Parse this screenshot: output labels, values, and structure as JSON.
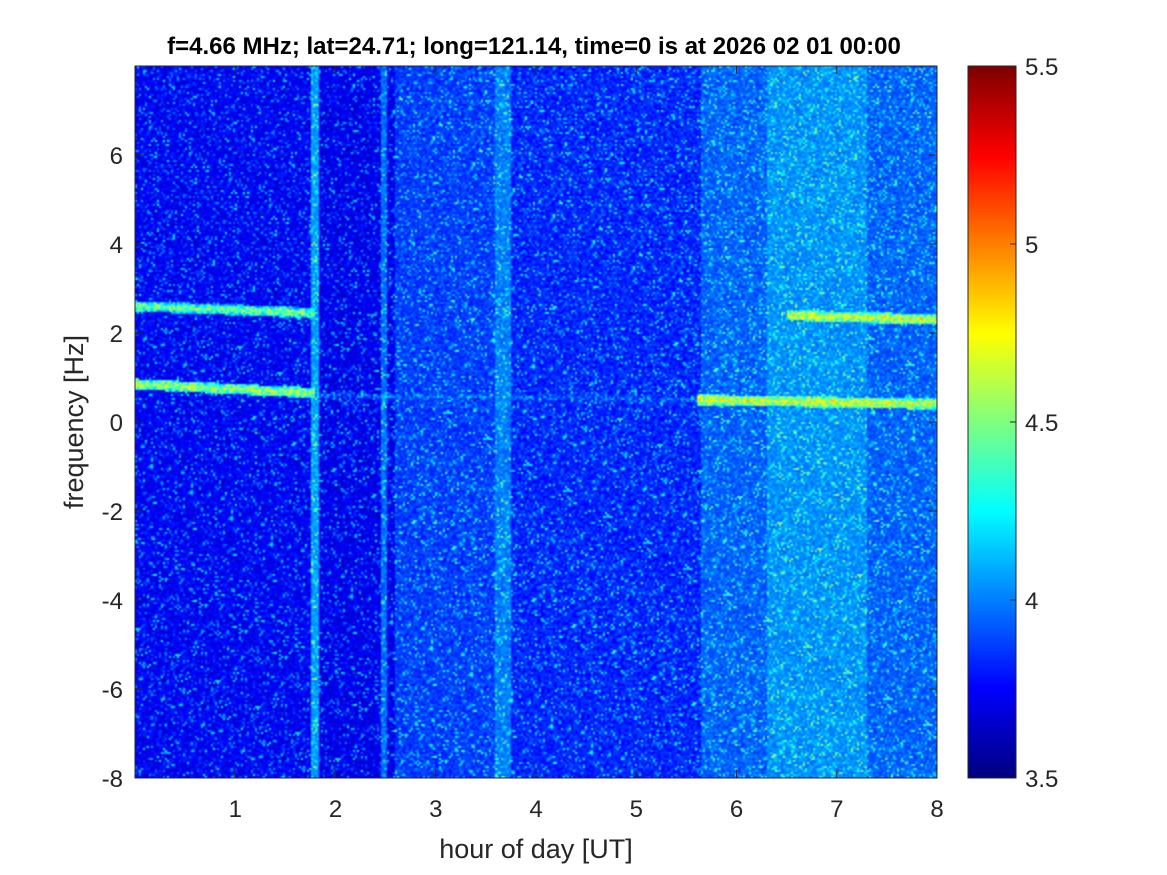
{
  "chart_data": {
    "type": "heatmap",
    "title": "f=4.66 MHz;  lat=24.71; long=121.14, time=0 is at 2026 02 01 00:00",
    "xlabel": "hour of day [UT]",
    "ylabel": "frequency [Hz]",
    "xlim": [
      0,
      8
    ],
    "ylim": [
      -8,
      8
    ],
    "x_ticks": [
      "1",
      "2",
      "3",
      "4",
      "5",
      "6",
      "7",
      "8"
    ],
    "y_ticks": [
      "-8",
      "-6",
      "-4",
      "-2",
      "0",
      "2",
      "4",
      "6"
    ],
    "colorbar": {
      "colormap": "jet",
      "clim": [
        3.5,
        5.5
      ],
      "ticks": [
        "3.5",
        "4",
        "4.5",
        "5",
        "5.5"
      ]
    },
    "background_level": 3.7,
    "vertical_bands": [
      {
        "x": [
          0,
          1.75
        ],
        "level": 3.72
      },
      {
        "x": [
          1.75,
          1.83
        ],
        "level": 4.05
      },
      {
        "x": [
          2.46,
          2.52
        ],
        "level": 3.95
      },
      {
        "x": [
          2.6,
          3.6
        ],
        "level": 3.85
      },
      {
        "x": [
          3.6,
          3.75
        ],
        "level": 3.98
      },
      {
        "x": [
          3.75,
          5.65
        ],
        "level": 3.8
      },
      {
        "x": [
          5.65,
          6.3
        ],
        "level": 3.92
      },
      {
        "x": [
          6.3,
          7.3
        ],
        "level": 4.02
      },
      {
        "x": [
          7.3,
          8
        ],
        "level": 3.92
      }
    ],
    "spectral_lines": [
      {
        "x": [
          0,
          1.8
        ],
        "y": [
          2.6,
          2.45
        ],
        "level": 4.5
      },
      {
        "x": [
          6.5,
          8
        ],
        "y": [
          2.4,
          2.3
        ],
        "level": 4.7
      },
      {
        "x": [
          0,
          1.8
        ],
        "y": [
          0.85,
          0.65
        ],
        "level": 4.6
      },
      {
        "x": [
          1.8,
          5.6
        ],
        "y": [
          0.6,
          0.5
        ],
        "level": 3.95
      },
      {
        "x": [
          5.6,
          8
        ],
        "y": [
          0.5,
          0.4
        ],
        "level": 4.7
      }
    ]
  }
}
